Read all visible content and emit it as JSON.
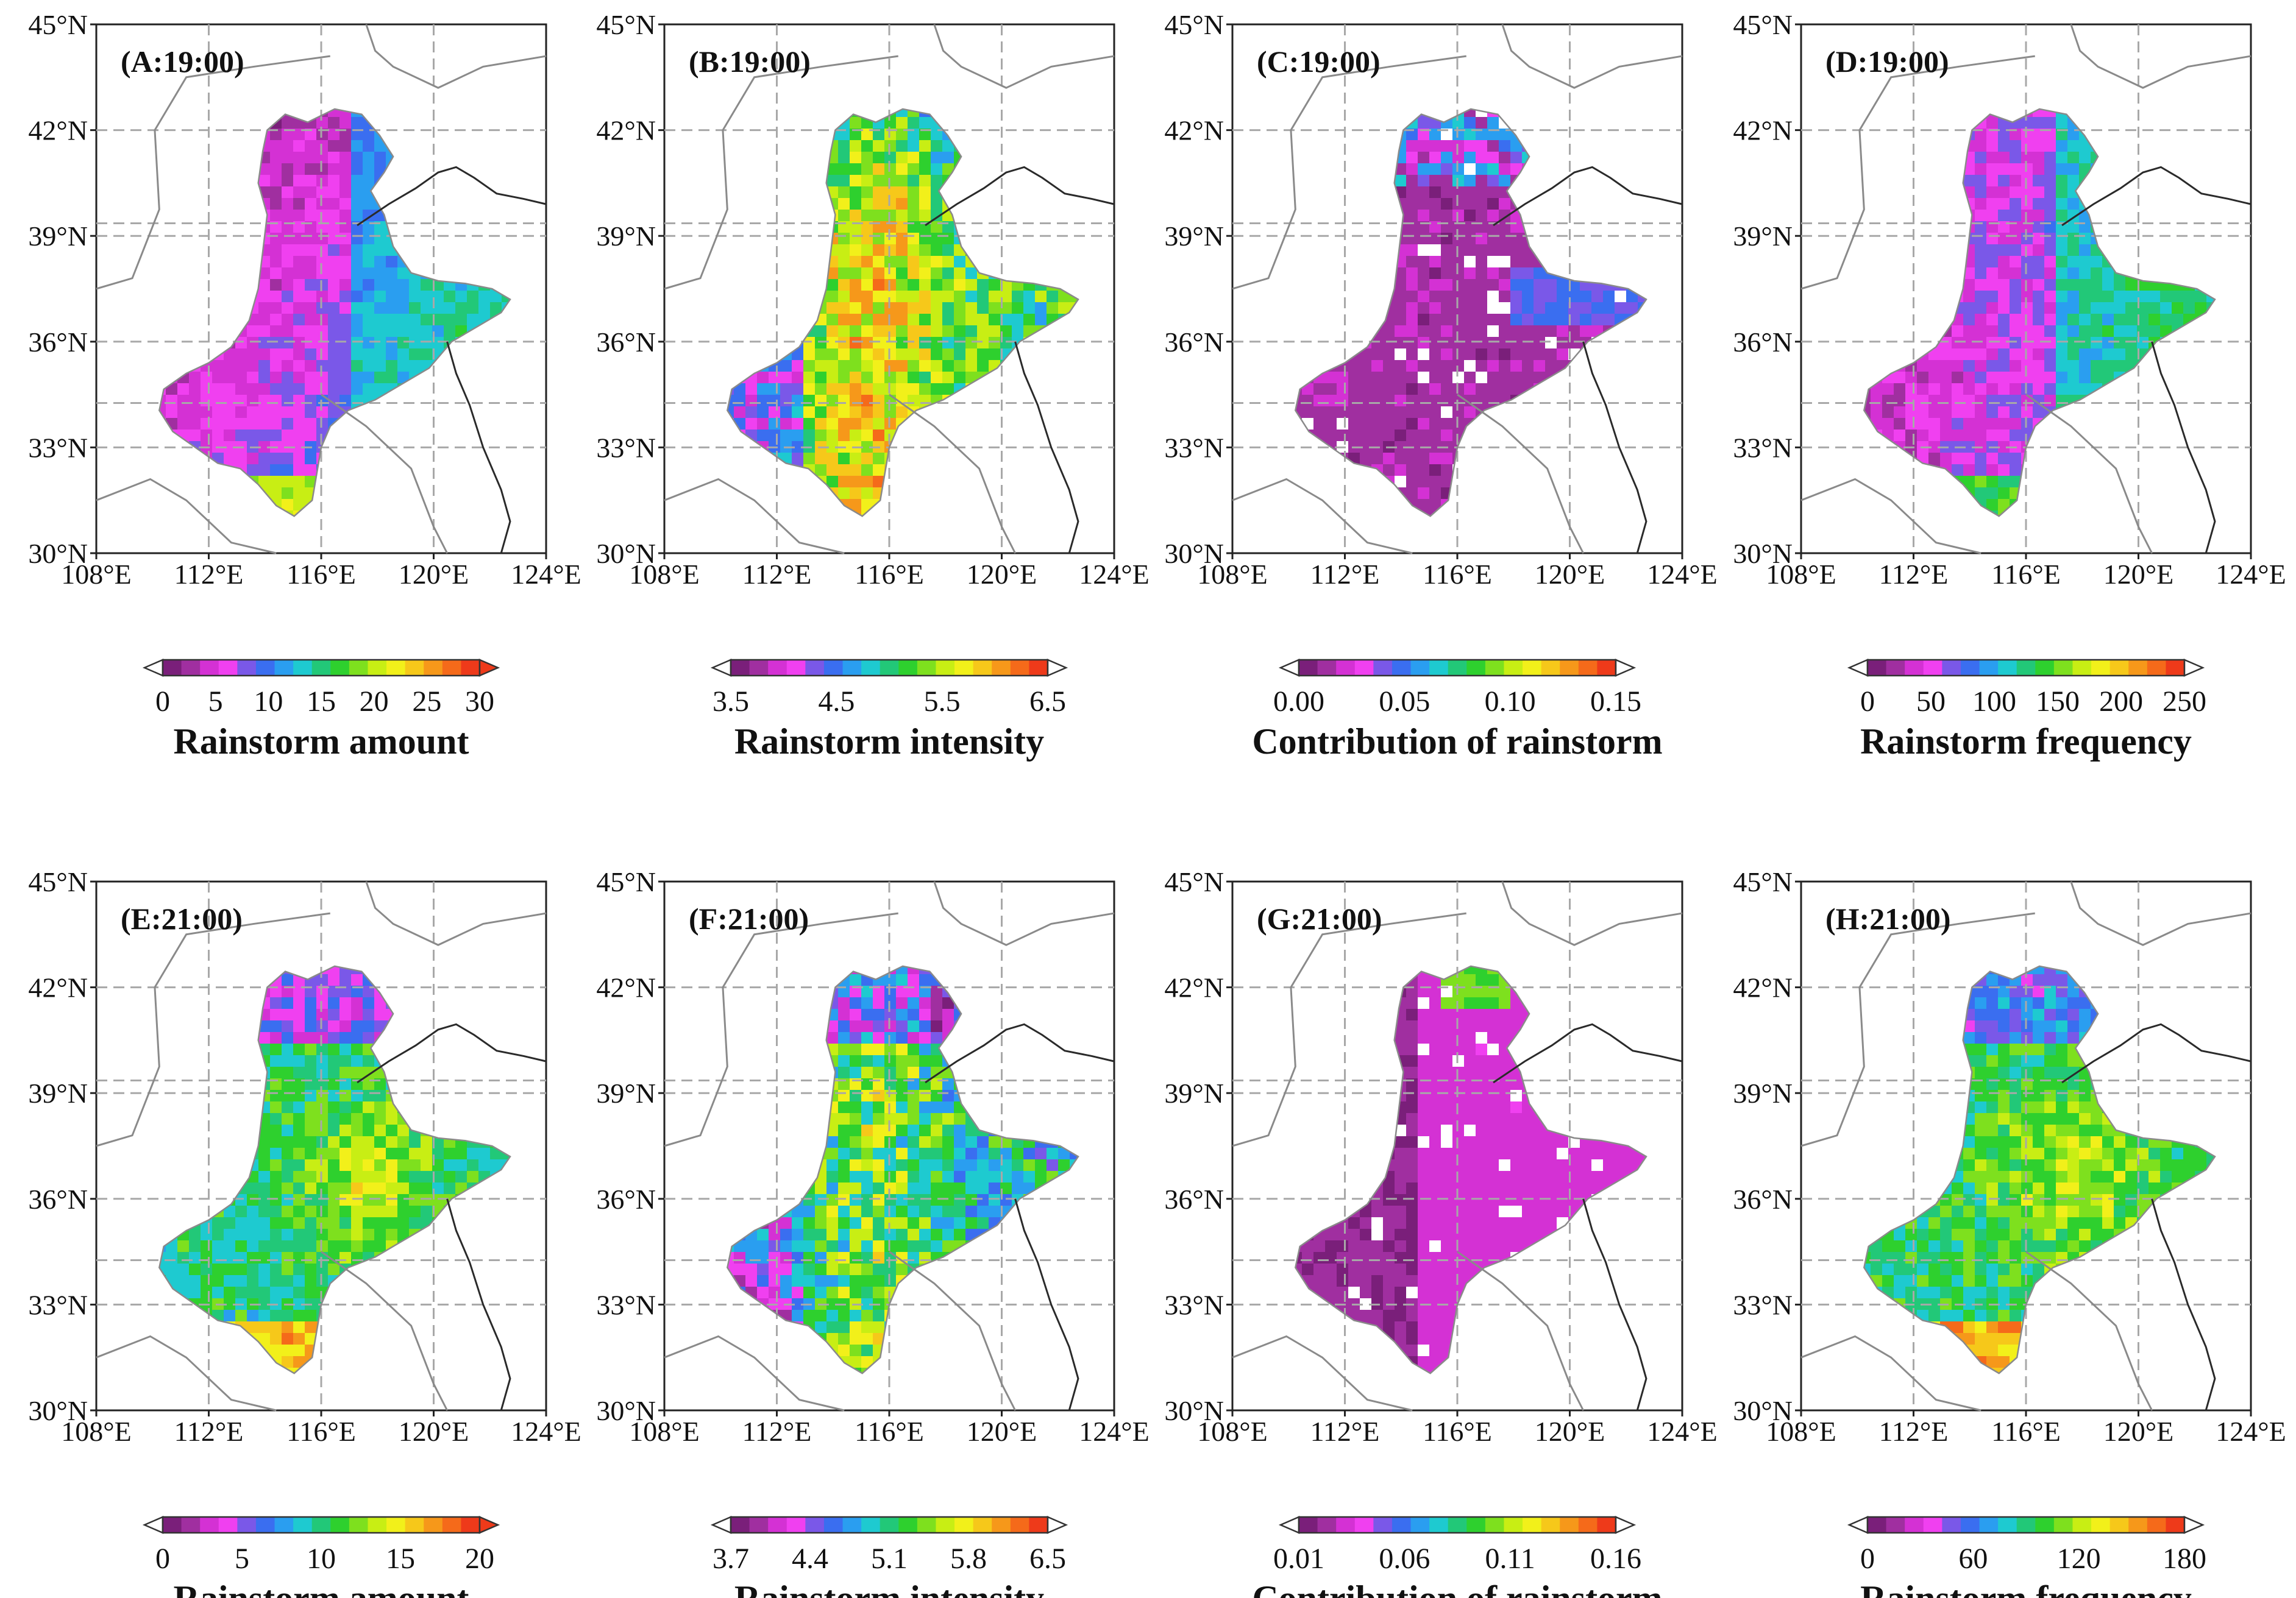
{
  "figure": {
    "lat_ticks": [
      "30°N",
      "33°N",
      "36°N",
      "39°N",
      "42°N",
      "45°N"
    ],
    "lon_ticks": [
      "108°E",
      "112°E",
      "116°E",
      "120°E",
      "124°E"
    ],
    "panels": [
      {
        "label": "(A:19:00)",
        "palette": "amount",
        "pattern": 0,
        "cb_title": "Rainstorm amount",
        "cb_ticks": [
          "0",
          "5",
          "10",
          "15",
          "20",
          "25",
          "30"
        ]
      },
      {
        "label": "(B:19:00)",
        "palette": "intensity",
        "pattern": 1,
        "cb_title": "Rainstorm intensity",
        "cb_ticks": [
          "3.5",
          "4.5",
          "5.5",
          "6.5"
        ]
      },
      {
        "label": "(C:19:00)",
        "palette": "contrib",
        "pattern": 2,
        "cb_title": "Contribution of rainstorm",
        "cb_ticks": [
          "0.00",
          "0.05",
          "0.10",
          "0.15"
        ]
      },
      {
        "label": "(D:19:00)",
        "palette": "freq",
        "pattern": 3,
        "cb_title": "Rainstorm frequency",
        "cb_ticks": [
          "0",
          "50",
          "100",
          "150",
          "200",
          "250"
        ]
      },
      {
        "label": "(E:21:00)",
        "palette": "amount",
        "pattern": 4,
        "cb_title": "Rainstorm amount",
        "cb_ticks": [
          "0",
          "5",
          "10",
          "15",
          "20"
        ]
      },
      {
        "label": "(F:21:00)",
        "palette": "intensity",
        "pattern": 5,
        "cb_title": "Rainstorm intensity",
        "cb_ticks": [
          "3.7",
          "4.4",
          "5.1",
          "5.8",
          "6.5"
        ]
      },
      {
        "label": "(G:21:00)",
        "palette": "contrib",
        "pattern": 6,
        "cb_title": "Contribution of rainstorm",
        "cb_ticks": [
          "0.01",
          "0.06",
          "0.11",
          "0.16"
        ]
      },
      {
        "label": "(H:21:00)",
        "palette": "freq",
        "pattern": 7,
        "cb_title": "Rainstorm frequency",
        "cb_ticks": [
          "0",
          "60",
          "120",
          "180"
        ]
      }
    ]
  },
  "colors": {
    "rainbow": [
      "#7a1f7a",
      "#a02fa0",
      "#d431d4",
      "#f040f0",
      "#7a58e8",
      "#3a6ef0",
      "#2a9ef0",
      "#1ecad0",
      "#22c878",
      "#2ed02e",
      "#7ee01e",
      "#c8ee14",
      "#f2f01a",
      "#f6c81a",
      "#f6981a",
      "#f56a1a",
      "#ee3a1a"
    ],
    "under": "#ffffff",
    "over_amount": "#ee3a1a",
    "over_other": "#ffffff"
  }
}
